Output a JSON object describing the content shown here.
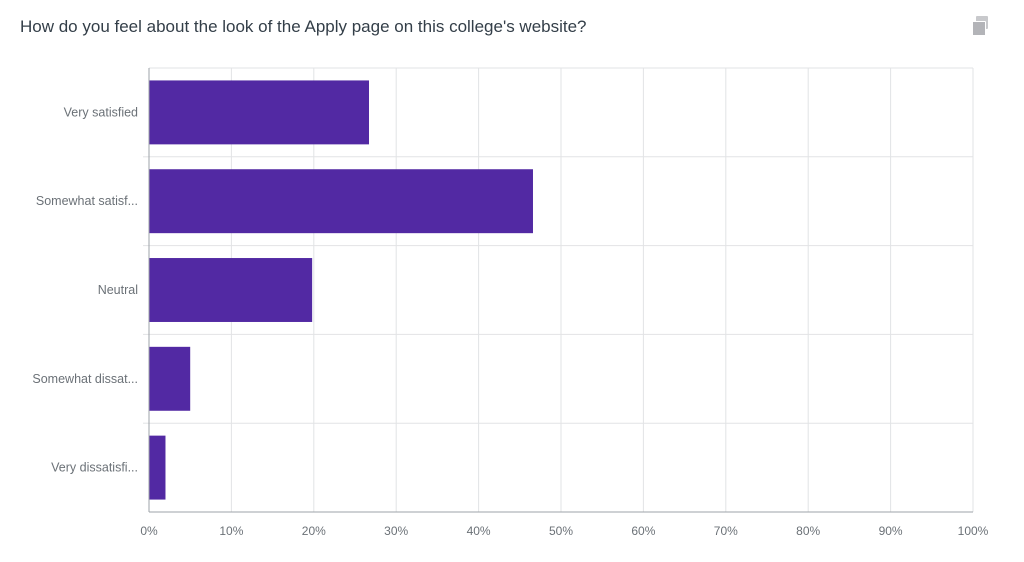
{
  "question": {
    "title": "How do you feel about the look of the Apply page on this college's website?"
  },
  "toolbar": {
    "copy_icon": "copy-icon"
  },
  "chart_data": {
    "type": "bar",
    "orientation": "horizontal",
    "categories": [
      "Very satisfied",
      "Somewhat satisf...",
      "Neutral",
      "Somewhat dissat...",
      "Very dissatisfi..."
    ],
    "values": [
      26.7,
      46.6,
      19.8,
      5.0,
      2.0
    ],
    "xlim": [
      0,
      100
    ],
    "x_ticks": [
      "0%",
      "10%",
      "20%",
      "30%",
      "40%",
      "50%",
      "60%",
      "70%",
      "80%",
      "90%",
      "100%"
    ],
    "grid": true,
    "bar_color": "#5229a3",
    "grid_color": "#e2e3e5",
    "axis_color": "#9ea3a8"
  }
}
